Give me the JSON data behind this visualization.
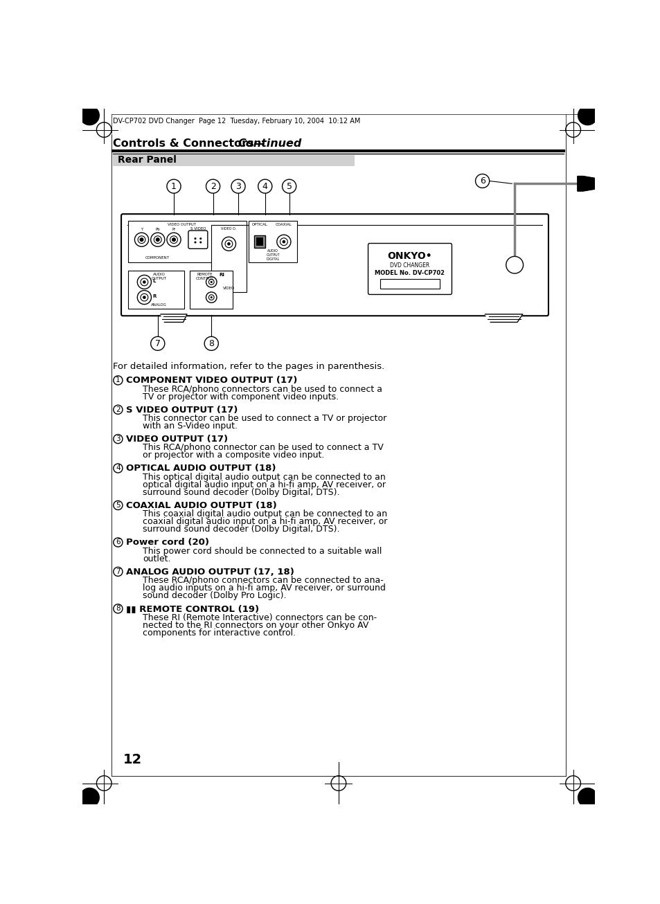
{
  "page_header_text": "DV-CP702 DVD Changer  Page 12  Tuesday, February 10, 2004  10:12 AM",
  "title_bold": "Controls & Connectors—",
  "title_italic": "Continued",
  "section_label": "Rear Panel",
  "intro_text": "For detailed information, refer to the pages in parenthesis.",
  "items": [
    {
      "num": "1",
      "heading": "COMPONENT VIDEO OUTPUT (17)",
      "bold": true,
      "body": "These RCA/phono connectors can be used to connect a\nTV or projector with component video inputs."
    },
    {
      "num": "2",
      "heading": "S VIDEO OUTPUT (17)",
      "bold": true,
      "body": "This connector can be used to connect a TV or projector\nwith an S-Video input."
    },
    {
      "num": "3",
      "heading": "VIDEO OUTPUT (17)",
      "bold": true,
      "body": "This RCA/phono connector can be used to connect a TV\nor projector with a composite video input."
    },
    {
      "num": "4",
      "heading": "OPTICAL AUDIO OUTPUT (18)",
      "bold": true,
      "body": "This optical digital audio output can be connected to an\noptical digital audio input on a hi-fi amp, AV receiver, or\nsurround sound decoder (Dolby Digital, DTS)."
    },
    {
      "num": "5",
      "heading": "COAXIAL AUDIO OUTPUT (18)",
      "bold": true,
      "body": "This coaxial digital audio output can be connected to an\ncoaxial digital audio input on a hi-fi amp, AV receiver, or\nsurround sound decoder (Dolby Digital, DTS)."
    },
    {
      "num": "6",
      "heading": "Power cord (20)",
      "bold": true,
      "body": "This power cord should be connected to a suitable wall\noutlet."
    },
    {
      "num": "7",
      "heading": "ANALOG AUDIO OUTPUT (17, 18)",
      "bold": true,
      "body": "These RCA/phono connectors can be connected to ana-\nlog audio inputs on a hi-fi amp, AV receiver, or surround\nsound decoder (Dolby Pro Logic)."
    },
    {
      "num": "8",
      "heading": "RI REMOTE CONTROL (19)",
      "bold": true,
      "ri_special": true,
      "body": "These RI (Remote Interactive) connectors can be con-\nnected to the RI connectors on your other Onkyo AV\ncomponents for interactive control."
    }
  ],
  "page_number": "12",
  "bg_color": "#ffffff"
}
